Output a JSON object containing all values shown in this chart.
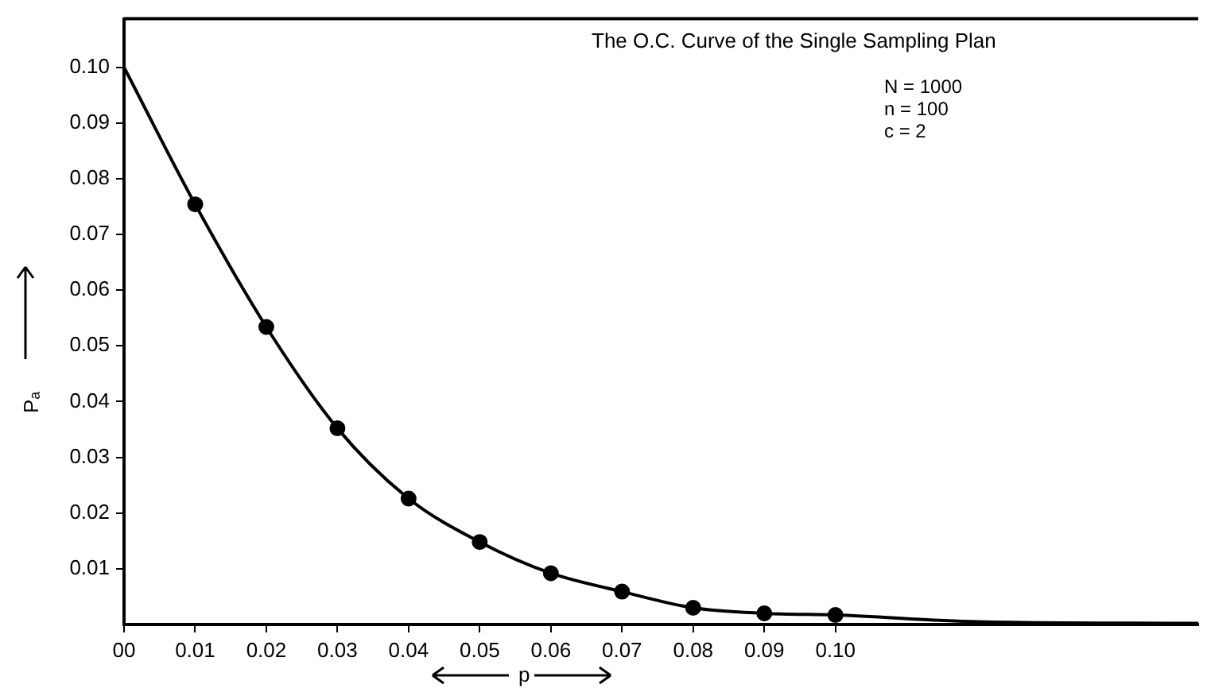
{
  "chart_data": {
    "type": "line",
    "title": "The O.C. Curve of the Single Sampling Plan",
    "xlabel": "p",
    "ylabel": "Pₐ",
    "annotations": [
      "N = 1000",
      "n = 100",
      "c = 2"
    ],
    "xlim": [
      0,
      0.151
    ],
    "ylim": [
      0,
      0.1087
    ],
    "xticks": [
      {
        "value": 0,
        "label": "00"
      },
      0.01,
      0.02,
      0.03,
      0.04,
      0.05,
      0.06,
      0.07,
      0.08,
      0.09,
      {
        "value": 0.1,
        "label": "0.10"
      }
    ],
    "yticks": [
      0.01,
      0.02,
      0.03,
      0.04,
      0.05,
      0.06,
      0.07,
      0.08,
      0.09,
      {
        "value": 0.1,
        "label": "0.10"
      }
    ],
    "grid": false,
    "legend": false,
    "series": [
      {
        "color": "#000000",
        "marker": "none",
        "line_style": "solid",
        "x": [
          0,
          0.01,
          0.02,
          0.03,
          0.04,
          0.05,
          0.06,
          0.07,
          0.08,
          0.09,
          0.1,
          0.12,
          0.151
        ],
        "values": [
          0.1,
          0.0754,
          0.0534,
          0.0352,
          0.0226,
          0.0148,
          0.0092,
          0.0059,
          0.003,
          0.002,
          0.0017,
          0.0005,
          0.0002
        ]
      },
      {
        "type": "scatter",
        "color": "#000000",
        "marker": "circle",
        "x": [
          0.01,
          0.02,
          0.03,
          0.04,
          0.05,
          0.06,
          0.07,
          0.08,
          0.09,
          0.1
        ],
        "values": [
          0.0754,
          0.0534,
          0.0352,
          0.0226,
          0.0148,
          0.0092,
          0.0059,
          0.003,
          0.002,
          0.0017
        ]
      }
    ]
  }
}
